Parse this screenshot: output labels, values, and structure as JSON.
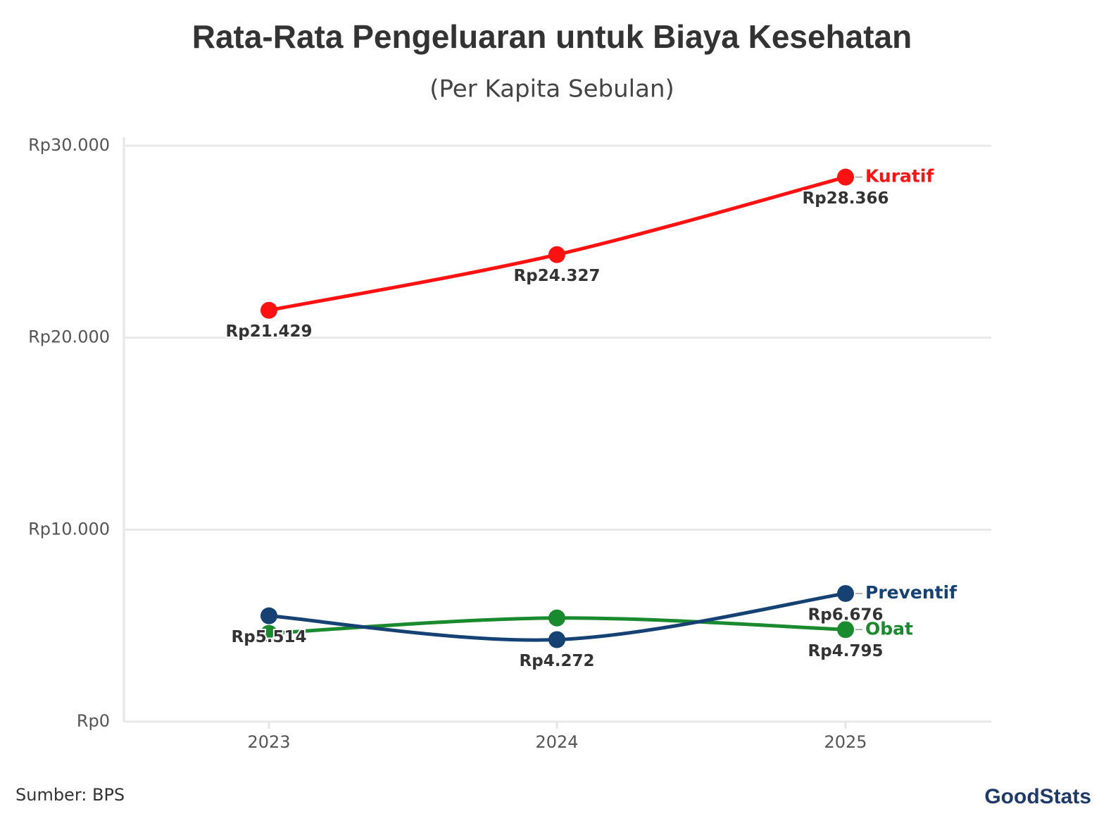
{
  "chart_data": {
    "type": "line",
    "title": "Rata-Rata Pengeluaran untuk Biaya Kesehatan",
    "subtitle": "(Per Kapita Sebulan)",
    "categories": [
      "2023",
      "2024",
      "2025"
    ],
    "series": [
      {
        "name": "Kuratif",
        "color": "#ff1111",
        "values": [
          21429,
          24327,
          28366
        ],
        "value_labels": [
          "Rp21.429",
          "Rp24.327",
          "Rp28.366"
        ]
      },
      {
        "name": "Preventif",
        "color": "#154273",
        "values": [
          5514,
          4272,
          6676
        ],
        "value_labels": [
          "Rp5.514",
          "Rp4.272",
          "Rp6.676"
        ]
      },
      {
        "name": "Obat",
        "color": "#1a8a2e",
        "values": [
          4600,
          5400,
          4795
        ],
        "value_labels": [
          null,
          null,
          "Rp4.795"
        ]
      }
    ],
    "ylim": [
      0,
      30000
    ],
    "yticks": [
      {
        "value": 0,
        "label": "Rp0"
      },
      {
        "value": 10000,
        "label": "Rp10.000"
      },
      {
        "value": 20000,
        "label": "Rp20.000"
      },
      {
        "value": 30000,
        "label": "Rp30.000"
      }
    ],
    "grid": true,
    "source": "Sumber: BPS",
    "logo": "GoodStats"
  }
}
